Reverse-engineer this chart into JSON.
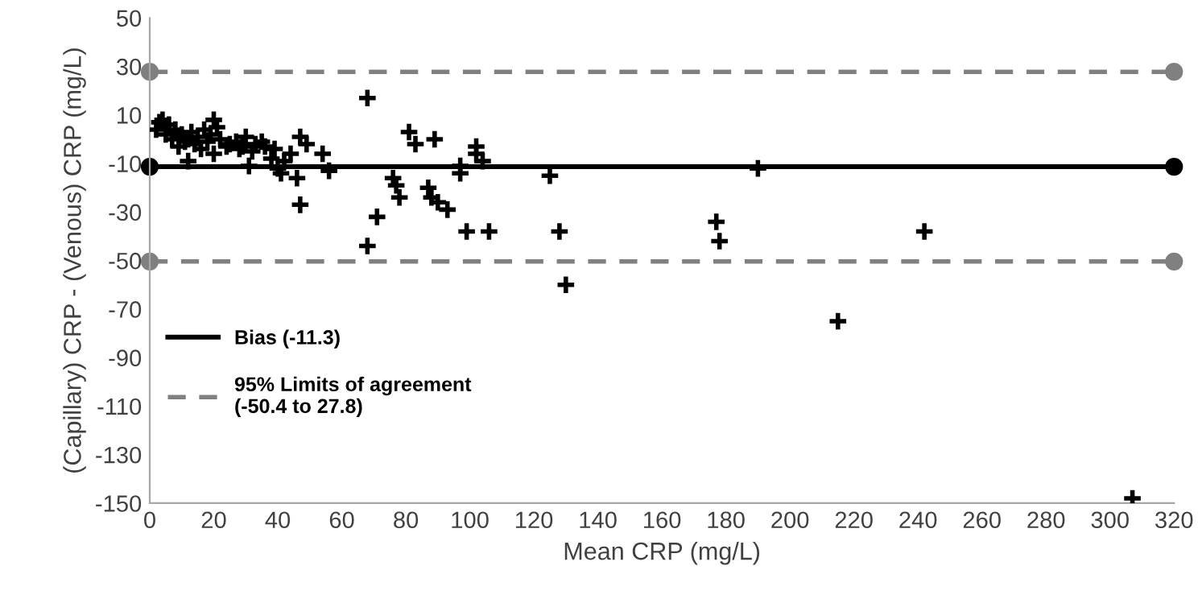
{
  "chart_data": {
    "type": "scatter",
    "ylabel": "(Capillary) CRP - (Venous) CRP (mg/L)",
    "xlabel": "Mean CRP (mg/L)",
    "xlim": [
      0,
      320
    ],
    "xticks": [
      0,
      20,
      40,
      60,
      80,
      100,
      120,
      140,
      160,
      180,
      200,
      220,
      240,
      260,
      280,
      300,
      320
    ],
    "ylim": [
      -150,
      50
    ],
    "yticks": [
      -150,
      -130,
      -110,
      -90,
      -70,
      -50,
      -30,
      -10,
      10,
      30,
      50
    ],
    "marker": "cross",
    "grid": false,
    "legend": "left",
    "series": [
      {
        "type": "line",
        "name": "Bias (-11.3)",
        "color": "#000000",
        "line_style": "solid",
        "marker": "circle",
        "x": [
          0,
          320
        ],
        "values": [
          -11.3,
          -11.3
        ]
      },
      {
        "type": "line",
        "name": "95% Limits of agreement\n(-50.4 to 27.8)",
        "color": "#808080",
        "line_style": "dashed",
        "marker": "circle",
        "x": [
          0,
          320
        ],
        "values": [
          27.8,
          27.8
        ]
      },
      {
        "type": "line",
        "color": "#808080",
        "line_style": "dashed",
        "marker": "circle",
        "x": [
          0,
          320
        ],
        "values": [
          -50.4,
          -50.4
        ]
      },
      {
        "color": "#000000",
        "x": [
          2,
          3,
          4,
          5,
          6,
          7,
          8,
          9,
          9,
          10,
          11,
          12,
          12,
          13,
          14,
          15,
          16,
          17,
          18,
          19,
          20,
          20,
          21,
          22,
          24,
          25,
          27,
          28,
          29,
          30,
          31,
          32,
          33,
          35,
          36,
          38,
          39,
          40,
          41,
          42,
          44,
          46,
          47,
          47,
          49,
          54,
          56,
          68,
          68,
          71,
          76,
          77,
          78,
          81,
          83,
          87,
          88,
          89,
          90,
          93,
          97,
          97,
          99,
          102,
          102,
          104,
          106,
          125,
          128,
          130,
          177,
          178,
          190,
          215,
          242,
          307
        ],
        "values": [
          4,
          7,
          8,
          2,
          6,
          0,
          4,
          1,
          -3,
          2,
          -1,
          0,
          -9,
          3,
          -2,
          1,
          -4,
          4,
          -1,
          2,
          8,
          -6,
          5,
          0,
          -3,
          -2,
          -1,
          -4,
          -3,
          1,
          -11,
          -5,
          -2,
          -1,
          -3,
          -8,
          -4,
          -12,
          -14,
          -9,
          -6,
          -16,
          1,
          -27,
          -2,
          -6,
          -13,
          17,
          -44,
          -32,
          -16,
          -19,
          -24,
          3,
          -2,
          -20,
          -24,
          0,
          -26,
          -29,
          -11,
          -14,
          -38,
          -3,
          -6,
          -9,
          -38,
          -15,
          -38,
          -60,
          -34,
          -42,
          -12,
          -75,
          -38,
          -148
        ]
      }
    ]
  }
}
